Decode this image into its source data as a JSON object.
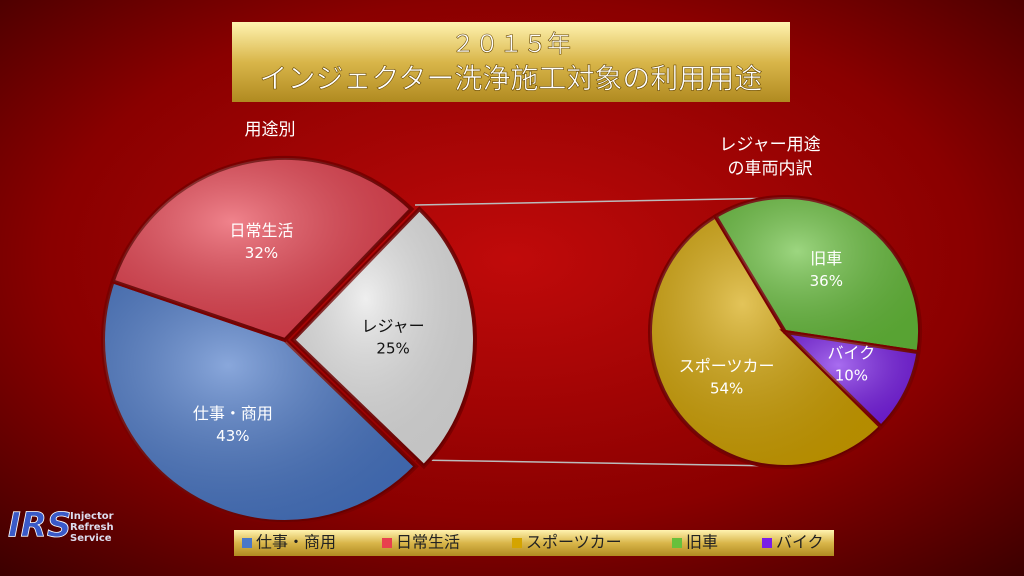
{
  "title": [
    "２０１５年",
    "インジェクター洗浄施工対象の利用用途"
  ],
  "logo": {
    "mark": "IRS",
    "lines": [
      "Injector",
      "Refresh",
      "Service"
    ]
  },
  "chart_data": [
    {
      "type": "pie",
      "title": "用途別",
      "categories": [
        "仕事・商用",
        "日常生活",
        "レジャー"
      ],
      "values": [
        43,
        32,
        25
      ],
      "value_labels": [
        "43%",
        "32%",
        "25%"
      ],
      "colors": [
        "#4a78c8",
        "#e8404e",
        "#e6e6e6"
      ]
    },
    {
      "type": "pie",
      "title": [
        "レジャー用途",
        "の車両内訳"
      ],
      "categories": [
        "スポーツカー",
        "旧車",
        "バイク"
      ],
      "values": [
        54,
        36,
        10
      ],
      "value_labels": [
        "54%",
        "36%",
        "10%"
      ],
      "colors": [
        "#d4a400",
        "#68c03c",
        "#7a1ee8"
      ]
    }
  ],
  "legend": {
    "position": "bottom"
  }
}
